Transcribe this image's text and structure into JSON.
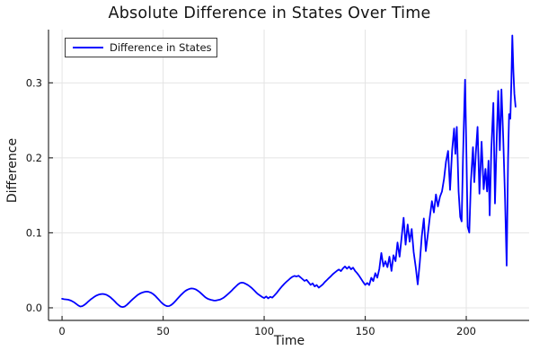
{
  "title": "Absolute Difference in States Over Time",
  "legend": {
    "label": "Difference in States"
  },
  "axes": {
    "xlabel": "Time",
    "ylabel": "Difference",
    "x_tick_labels": [
      "0",
      "50",
      "100",
      "150",
      "200"
    ],
    "y_tick_labels": [
      "0.0",
      "0.1",
      "0.2",
      "0.3"
    ]
  },
  "colors": {
    "line": "#0000ff",
    "grid": "#e4e4e4",
    "spine": "#2f2f2f",
    "tick_text": "#141414",
    "background": "#ffffff"
  },
  "chart_data": {
    "type": "line",
    "title": "Absolute Difference in States Over Time",
    "xlabel": "Time",
    "ylabel": "Difference",
    "xlim": [
      -6.7,
      231.1
    ],
    "ylim": [
      -0.0168,
      0.371
    ],
    "x_ticks": [
      0,
      50,
      100,
      150,
      200
    ],
    "y_ticks": [
      0.0,
      0.1,
      0.2,
      0.3
    ],
    "grid": true,
    "legend_position": "top-left",
    "series": [
      {
        "name": "Difference in States",
        "color": "#0000ff",
        "x": [
          0,
          1,
          2,
          3,
          4,
          5,
          6,
          7,
          8,
          9,
          10,
          11,
          12,
          13,
          14,
          15,
          16,
          17,
          18,
          19,
          20,
          21,
          22,
          23,
          24,
          25,
          26,
          27,
          28,
          29,
          30,
          31,
          32,
          33,
          34,
          35,
          36,
          37,
          38,
          39,
          40,
          41,
          42,
          43,
          44,
          45,
          46,
          47,
          48,
          49,
          50,
          51,
          52,
          53,
          54,
          55,
          56,
          57,
          58,
          59,
          60,
          61,
          62,
          63,
          64,
          65,
          66,
          67,
          68,
          69,
          70,
          71,
          72,
          73,
          74,
          75,
          76,
          77,
          78,
          79,
          80,
          81,
          82,
          83,
          84,
          85,
          86,
          87,
          88,
          89,
          90,
          91,
          92,
          93,
          94,
          95,
          96,
          97,
          98,
          99,
          100,
          101,
          102,
          103,
          104,
          105,
          106,
          107,
          108,
          109,
          110,
          111,
          112,
          113,
          114,
          115,
          116,
          117,
          118,
          119,
          120,
          121,
          122,
          123,
          124,
          125,
          126,
          127,
          128,
          129,
          130,
          131,
          132,
          133,
          134,
          135,
          136,
          137,
          138,
          139,
          140,
          141,
          142,
          143,
          144,
          145,
          146,
          147,
          148,
          149,
          150,
          151,
          152,
          153,
          154,
          155,
          156,
          157,
          158,
          159,
          160,
          161,
          162,
          163,
          164,
          165,
          166,
          167,
          168,
          169,
          170,
          171,
          172,
          173,
          174,
          175,
          176,
          177,
          178,
          179,
          180,
          181,
          182,
          183,
          184,
          185,
          186,
          187,
          188,
          189,
          190,
          191,
          192,
          193,
          194,
          194.6,
          195.3,
          196.2,
          197,
          197.7,
          198.4,
          199,
          199.4,
          200,
          200.7,
          201.5,
          202.3,
          203.3,
          204,
          204.7,
          205.6,
          206.5,
          207.6,
          208.6,
          209.5,
          210.3,
          211,
          211.6,
          212.4,
          213.4,
          214.2,
          215,
          215.8,
          216.6,
          217.4,
          218.3,
          219.2,
          220,
          220.7,
          221.2,
          221.8,
          222.3,
          222.8,
          223.3,
          223.8,
          224.4
        ],
        "y": [
          0.012,
          0.0115,
          0.0112,
          0.0108,
          0.01,
          0.0088,
          0.0072,
          0.0052,
          0.0032,
          0.0018,
          0.0022,
          0.0038,
          0.006,
          0.0085,
          0.0108,
          0.0128,
          0.0148,
          0.0163,
          0.0174,
          0.0182,
          0.0185,
          0.0182,
          0.0173,
          0.0158,
          0.0138,
          0.0114,
          0.0088,
          0.006,
          0.0035,
          0.0016,
          0.001,
          0.0018,
          0.0038,
          0.0063,
          0.009,
          0.0116,
          0.014,
          0.0162,
          0.0181,
          0.0196,
          0.0207,
          0.0214,
          0.0216,
          0.0212,
          0.0202,
          0.0185,
          0.0162,
          0.0135,
          0.0105,
          0.0075,
          0.005,
          0.0032,
          0.0022,
          0.0024,
          0.0038,
          0.006,
          0.0088,
          0.0118,
          0.0148,
          0.0176,
          0.0202,
          0.0224,
          0.0241,
          0.0252,
          0.0258,
          0.0256,
          0.0247,
          0.0232,
          0.0212,
          0.0188,
          0.0162,
          0.0138,
          0.0122,
          0.0112,
          0.0104,
          0.0098,
          0.0096,
          0.0102,
          0.0108,
          0.0121,
          0.0136,
          0.0157,
          0.0181,
          0.0206,
          0.0232,
          0.0259,
          0.0286,
          0.0311,
          0.033,
          0.0336,
          0.0331,
          0.0318,
          0.0302,
          0.0283,
          0.026,
          0.0234,
          0.0206,
          0.0181,
          0.0162,
          0.0144,
          0.013,
          0.0152,
          0.0126,
          0.0147,
          0.0136,
          0.0162,
          0.0192,
          0.0226,
          0.026,
          0.0292,
          0.0321,
          0.0347,
          0.0371,
          0.0394,
          0.0414,
          0.0426,
          0.0417,
          0.0428,
          0.0406,
          0.0383,
          0.0359,
          0.0373,
          0.0339,
          0.0306,
          0.0326,
          0.0286,
          0.0303,
          0.0269,
          0.0289,
          0.0312,
          0.0343,
          0.0369,
          0.0396,
          0.0421,
          0.0449,
          0.0471,
          0.0493,
          0.0511,
          0.0489,
          0.0526,
          0.0551,
          0.0521,
          0.0549,
          0.0513,
          0.0536,
          0.0491,
          0.0463,
          0.0426,
          0.0386,
          0.0343,
          0.0306,
          0.0331,
          0.0303,
          0.0401,
          0.0356,
          0.0461,
          0.0402,
          0.0521,
          0.0731,
          0.0552,
          0.0621,
          0.0542,
          0.0682,
          0.0492,
          0.0701,
          0.0622,
          0.0871,
          0.0682,
          0.0932,
          0.1201,
          0.0842,
          0.1112,
          0.0882,
          0.1052,
          0.0742,
          0.0542,
          0.0312,
          0.0602,
          0.0952,
          0.1192,
          0.0756,
          0.0982,
          0.1212,
          0.1422,
          0.1272,
          0.1512,
          0.1352,
          0.1482,
          0.1552,
          0.1722,
          0.1952,
          0.2092,
          0.1572,
          0.2102,
          0.2392,
          0.2052,
          0.2412,
          0.1552,
          0.1212,
          0.1152,
          0.2002,
          0.2652,
          0.3042,
          0.2202,
          0.1082,
          0.1002,
          0.1682,
          0.2142,
          0.1675,
          0.2052,
          0.2412,
          0.1522,
          0.2215,
          0.1582,
          0.1852,
          0.1552,
          0.1962,
          0.1232,
          0.2102,
          0.2732,
          0.1392,
          0.2202,
          0.2892,
          0.2102,
          0.2912,
          0.2252,
          0.1452,
          0.0562,
          0.2002,
          0.2582,
          0.2522,
          0.3002,
          0.3632,
          0.3152,
          0.2852,
          0.2682
        ]
      }
    ]
  }
}
